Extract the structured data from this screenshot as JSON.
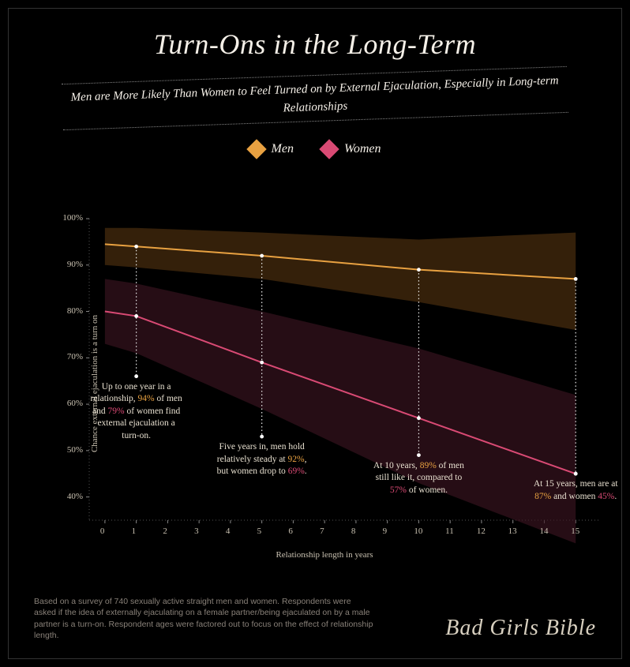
{
  "title": {
    "text": "Turn-Ons in the Long-Term",
    "fontsize": 36,
    "color": "#f5f0e8"
  },
  "subtitle": {
    "text": "Men are More Likely Than Women to Feel Turned on by External Ejaculation, Especially in Long-term Relationships",
    "fontsize": 15
  },
  "legend": {
    "men": {
      "label": "Men",
      "color": "#e8a141"
    },
    "women": {
      "label": "Women",
      "color": "#d94a74"
    }
  },
  "chart": {
    "type": "line",
    "background_color": "#000000",
    "xlabel": "Relationship length in years",
    "ylabel": "Chance external ejaculation is a turn on",
    "xlim": [
      -0.5,
      15.8
    ],
    "ylim": [
      35,
      100
    ],
    "xticks": [
      0,
      1,
      2,
      3,
      4,
      5,
      6,
      7,
      8,
      9,
      10,
      11,
      12,
      13,
      14,
      15
    ],
    "yticks": [
      40,
      50,
      60,
      70,
      80,
      90,
      100
    ],
    "ytick_suffix": "%",
    "tick_fontsize": 11,
    "label_fontsize": 11,
    "grid_color": "#555555",
    "series": {
      "men": {
        "x": [
          0,
          1,
          5,
          10,
          15
        ],
        "y": [
          94.5,
          94,
          92,
          89,
          87
        ],
        "color": "#e8a141",
        "band_color": "#4a2e0e",
        "band_lo": [
          90,
          89.5,
          87,
          82,
          76
        ],
        "band_hi": [
          98,
          98,
          97,
          95.5,
          97
        ]
      },
      "women": {
        "x": [
          0,
          1,
          5,
          10,
          15
        ],
        "y": [
          80,
          79,
          69,
          57,
          45
        ],
        "color": "#d94a74",
        "band_color": "#3a1420",
        "band_lo": [
          73,
          71,
          59,
          43,
          30
        ],
        "band_hi": [
          87,
          86,
          80,
          72,
          62
        ]
      }
    },
    "callouts": [
      {
        "x": 1,
        "prefix": "Up to one year in a relationship, ",
        "men_val": "94%",
        "mid1": " of men and ",
        "women_val": "79%",
        "suffix": " of women find external ejaculation a turn-on."
      },
      {
        "x": 5,
        "prefix": "Five years in, men hold relatively steady at ",
        "men_val": "92%",
        "mid1": ", but women drop to ",
        "women_val": "69%",
        "suffix": "."
      },
      {
        "x": 10,
        "prefix": "At 10 years, ",
        "men_val": "89%",
        "mid1": " of men still like it, compared to ",
        "women_val": "57%",
        "suffix": " of women."
      },
      {
        "x": 15,
        "prefix": "At 15 years, men are at ",
        "men_val": "87%",
        "mid1": " and women ",
        "women_val": "45%",
        "suffix": "."
      }
    ]
  },
  "footer": {
    "note": "Based on a survey of 740 sexually active straight men and women. Respondents were asked if the idea of externally ejaculating on a female partner/being ejaculated on by a male partner is a turn-on. Respondent ages were factored out to focus on the effect of relationship length.",
    "brand": "Bad Girls Bible",
    "brand_fontsize": 28
  }
}
